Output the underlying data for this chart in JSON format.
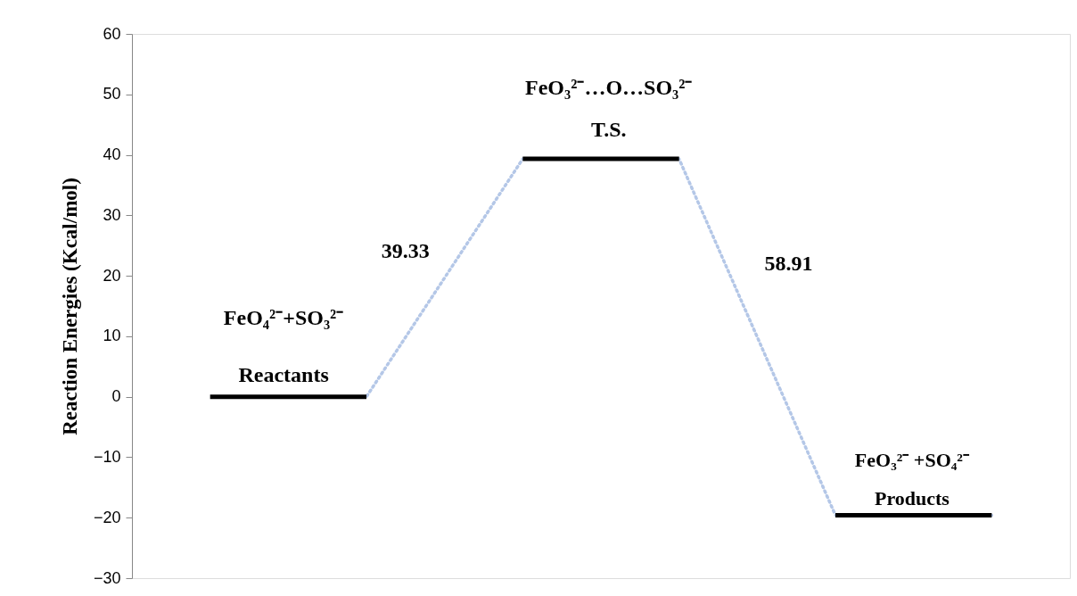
{
  "chart_data": {
    "type": "line",
    "ylabel": "Reaction Energies (Kcal/mol)",
    "categories": [
      null,
      null,
      null,
      null,
      null,
      null
    ],
    "series": [
      {
        "color": "#b4c7e7",
        "line_style": "dotted",
        "values": [
          0,
          0,
          39.33,
          39.33,
          -19.58,
          -19.58
        ]
      },
      {
        "color": "#000000",
        "line_style": "solid",
        "values": [
          0,
          0,
          null,
          null,
          null,
          null
        ]
      },
      {
        "color": "#000000",
        "line_style": "solid",
        "values": [
          null,
          null,
          39.33,
          39.33,
          null,
          null
        ]
      },
      {
        "color": "#000000",
        "line_style": "solid",
        "values": [
          null,
          null,
          null,
          null,
          -19.58,
          -19.58
        ]
      }
    ],
    "ylim": [
      -30,
      60
    ],
    "yticks": [
      -30,
      -20,
      -10,
      0,
      10,
      20,
      30,
      40,
      50,
      60
    ],
    "grid": false,
    "marker": "none",
    "tick_labels": "y",
    "annotations": [
      "FeO₄²⁻+SO₃²⁻",
      "Reactants",
      "FeO₃²⁻…O…SO₃²⁻",
      "T.S.",
      "39.33",
      "58.91",
      "FeO₃²⁻ +SO₄²⁻",
      "Products"
    ]
  }
}
